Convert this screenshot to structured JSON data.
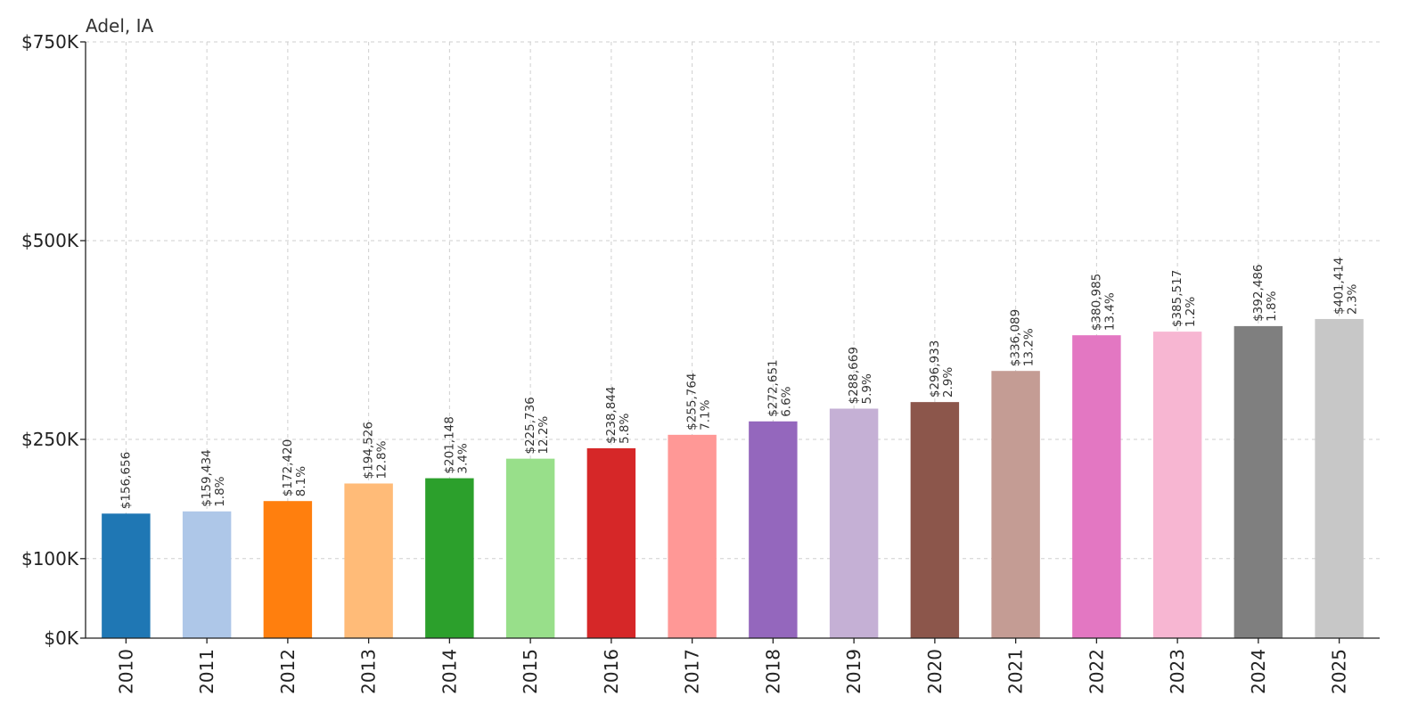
{
  "chart_data": {
    "type": "bar",
    "title": "Adel, IA",
    "xlabel": "",
    "ylabel": "",
    "ylim": [
      0,
      750000
    ],
    "grid": true,
    "yticks": [
      {
        "value": 0,
        "label": "$0K"
      },
      {
        "value": 100000,
        "label": "$100K"
      },
      {
        "value": 250000,
        "label": "$250K"
      },
      {
        "value": 500000,
        "label": "$500K"
      },
      {
        "value": 750000,
        "label": "$750K"
      }
    ],
    "categories": [
      "2010",
      "2011",
      "2012",
      "2013",
      "2014",
      "2015",
      "2016",
      "2017",
      "2018",
      "2019",
      "2020",
      "2021",
      "2022",
      "2023",
      "2024",
      "2025"
    ],
    "values": [
      156656,
      159434,
      172420,
      194526,
      201148,
      225736,
      238844,
      255764,
      272651,
      288669,
      296933,
      336089,
      380985,
      385517,
      392486,
      401414
    ],
    "value_labels": [
      "$156,656",
      "$159,434",
      "$172,420",
      "$194,526",
      "$201,148",
      "$225,736",
      "$238,844",
      "$255,764",
      "$272,651",
      "$288,669",
      "$296,933",
      "$336,089",
      "$380,985",
      "$385,517",
      "$392,486",
      "$401,414"
    ],
    "change_labels": [
      "",
      "1.8%",
      "8.1%",
      "12.8%",
      "3.4%",
      "12.2%",
      "5.8%",
      "7.1%",
      "6.6%",
      "5.9%",
      "2.9%",
      "13.2%",
      "13.4%",
      "1.2%",
      "1.8%",
      "2.3%"
    ],
    "colors": [
      "#1f77b4",
      "#aec7e8",
      "#ff7f0e",
      "#ffbb78",
      "#2ca02c",
      "#98df8a",
      "#d62728",
      "#ff9896",
      "#9467bd",
      "#c5b0d5",
      "#8c564b",
      "#c49c94",
      "#e377c2",
      "#f7b6d2",
      "#7f7f7f",
      "#c7c7c7"
    ]
  }
}
